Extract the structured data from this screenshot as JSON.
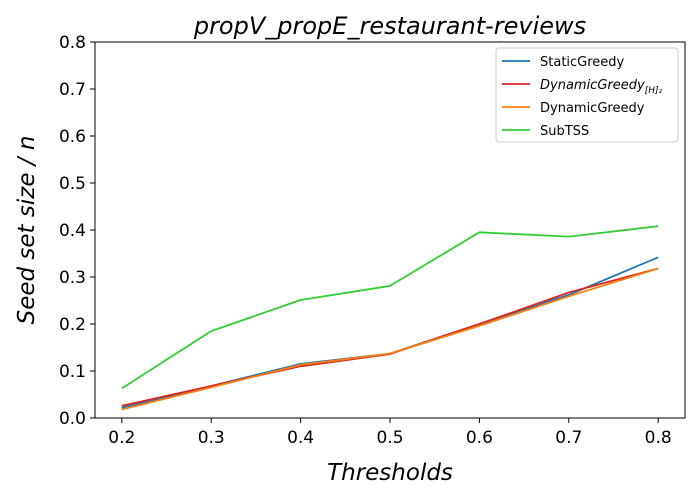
{
  "chart_data": {
    "type": "line",
    "title": "propV_propE_restaurant-reviews",
    "xlabel": "Thresholds",
    "ylabel": "Seed set size / n",
    "x": [
      0.2,
      0.3,
      0.4,
      0.5,
      0.6,
      0.7,
      0.8
    ],
    "x_ticks": [
      "0.2",
      "0.3",
      "0.4",
      "0.5",
      "0.6",
      "0.7",
      "0.8"
    ],
    "y_ticks": [
      "0.0",
      "0.1",
      "0.2",
      "0.3",
      "0.4",
      "0.5",
      "0.6",
      "0.7",
      "0.8"
    ],
    "xlim": [
      0.17,
      0.83
    ],
    "ylim": [
      0.0,
      0.8
    ],
    "grid": false,
    "legend_position": "top-right",
    "series": [
      {
        "name": "StaticGreedy",
        "color": "#1f77b4",
        "values": [
          0.022,
          0.068,
          0.115,
          0.137,
          0.2,
          0.262,
          0.342
        ]
      },
      {
        "name": "DynamicGreedy",
        "subscript": "[H]₂",
        "italic": true,
        "color": "#d62728",
        "values": [
          0.026,
          0.068,
          0.11,
          0.136,
          0.2,
          0.267,
          0.318
        ]
      },
      {
        "name": "DynamicGreedy",
        "color": "#ff7f0e",
        "values": [
          0.018,
          0.065,
          0.113,
          0.137,
          0.196,
          0.259,
          0.318
        ]
      },
      {
        "name": "SubTSS",
        "color": "#32cd32",
        "values": [
          0.063,
          0.185,
          0.251,
          0.281,
          0.395,
          0.386,
          0.408
        ]
      }
    ]
  }
}
